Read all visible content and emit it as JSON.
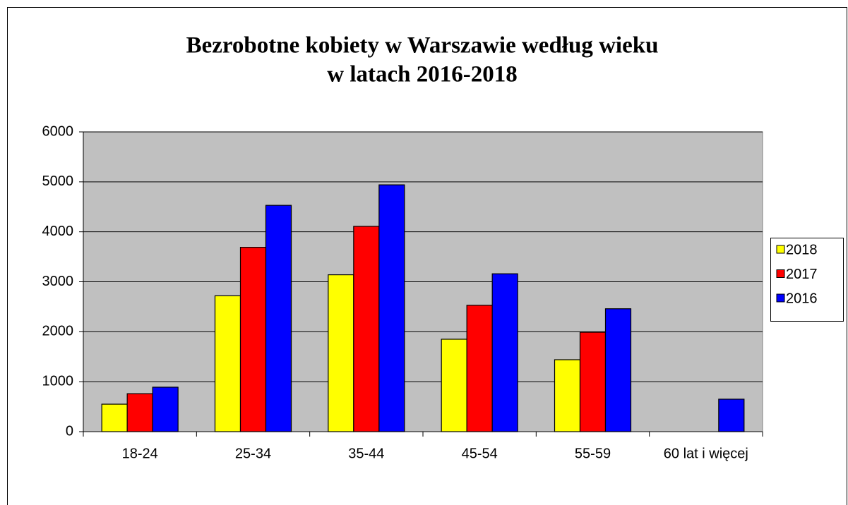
{
  "chart_data": {
    "type": "bar",
    "title": [
      "Bezrobotne kobiety w Warszawie według wieku",
      "w latach 2016-2018"
    ],
    "categories": [
      "18-24",
      "25-34",
      "35-44",
      "45-54",
      "55-59",
      "60 lat i więcej"
    ],
    "series": [
      {
        "name": "2018",
        "color": "#ffff00",
        "values": [
          550,
          2720,
          3140,
          1850,
          1440,
          null
        ]
      },
      {
        "name": "2017",
        "color": "#ff0000",
        "values": [
          760,
          3690,
          4110,
          2530,
          1990,
          null
        ]
      },
      {
        "name": "2016",
        "color": "#0000ff",
        "values": [
          890,
          4530,
          4940,
          3160,
          2460,
          650
        ]
      }
    ],
    "ylim": [
      0,
      6000
    ],
    "yticks": [
      0,
      1000,
      2000,
      3000,
      4000,
      5000,
      6000
    ],
    "grid": true,
    "legend": "right"
  }
}
